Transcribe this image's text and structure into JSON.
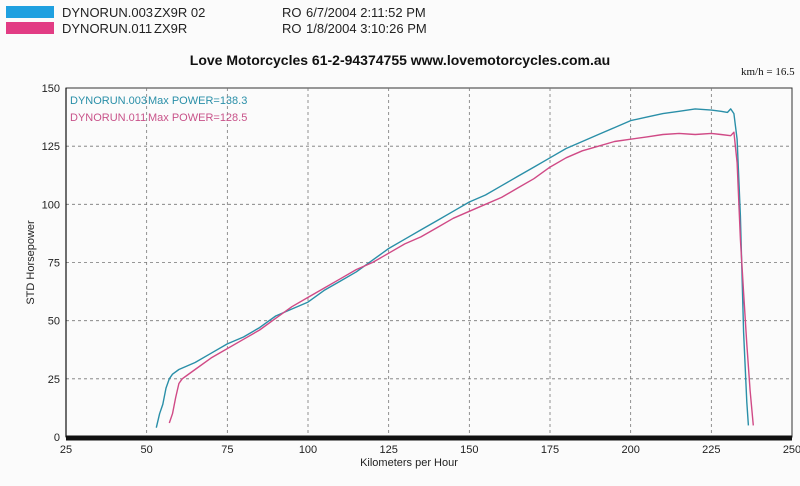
{
  "header": {
    "rows": [
      {
        "run": "DYNORUN.003",
        "model": "ZX9R 02",
        "code": "RO",
        "datetime": "6/7/2004 2:11:52 PM",
        "color": "#1fa0e0"
      },
      {
        "run": "DYNORUN.011",
        "model": "ZX9R",
        "code": "RO",
        "datetime": "1/8/2004 3:10:26 PM",
        "color": "#e23c84"
      }
    ]
  },
  "title": "Love Motorcycles 61-2-94374755 www.lovemotorcycles.com.au",
  "unit_note": "km/h = 16.5",
  "chart_data": {
    "type": "line",
    "xlabel": "Kilometers per Hour",
    "ylabel": "STD Horsepower",
    "xlim": [
      25,
      250
    ],
    "ylim": [
      0,
      150
    ],
    "xticks": [
      25,
      50,
      75,
      100,
      125,
      150,
      175,
      200,
      225,
      250
    ],
    "yticks": [
      0,
      25,
      50,
      75,
      100,
      125,
      150
    ],
    "grid": true,
    "legend": "top-left",
    "annotations": [
      {
        "run": "DYNORUN.003",
        "text": "Max POWER=138.3",
        "color": "#2a8fa8"
      },
      {
        "run": "DYNORUN.011",
        "text": "Max POWER=128.5",
        "color": "#c8538a"
      }
    ],
    "series": [
      {
        "name": "DYNORUN.003",
        "color": "#2a8fa8",
        "points": [
          [
            53,
            4
          ],
          [
            54,
            10
          ],
          [
            55,
            14
          ],
          [
            56,
            21
          ],
          [
            57,
            25
          ],
          [
            58,
            27
          ],
          [
            60,
            29
          ],
          [
            65,
            32
          ],
          [
            70,
            36
          ],
          [
            75,
            40
          ],
          [
            80,
            43
          ],
          [
            85,
            47
          ],
          [
            90,
            52
          ],
          [
            95,
            55
          ],
          [
            100,
            58
          ],
          [
            105,
            63
          ],
          [
            110,
            67
          ],
          [
            115,
            71
          ],
          [
            120,
            76
          ],
          [
            125,
            81
          ],
          [
            130,
            85
          ],
          [
            135,
            89
          ],
          [
            140,
            93
          ],
          [
            145,
            97
          ],
          [
            150,
            101
          ],
          [
            155,
            104
          ],
          [
            160,
            108
          ],
          [
            165,
            112
          ],
          [
            170,
            116
          ],
          [
            175,
            120
          ],
          [
            180,
            124
          ],
          [
            185,
            127
          ],
          [
            190,
            130
          ],
          [
            195,
            133
          ],
          [
            200,
            136
          ],
          [
            205,
            137.5
          ],
          [
            210,
            139
          ],
          [
            215,
            140
          ],
          [
            220,
            141
          ],
          [
            225,
            140.5
          ],
          [
            228,
            140
          ],
          [
            230,
            139.5
          ],
          [
            231,
            141
          ],
          [
            232,
            139
          ],
          [
            233,
            128
          ],
          [
            234,
            95
          ],
          [
            235,
            45
          ],
          [
            236,
            15
          ],
          [
            236.5,
            5
          ]
        ]
      },
      {
        "name": "DYNORUN.011",
        "color": "#d04a86",
        "points": [
          [
            57,
            6
          ],
          [
            58,
            10
          ],
          [
            59,
            17
          ],
          [
            60,
            23
          ],
          [
            61,
            25
          ],
          [
            62,
            26
          ],
          [
            65,
            29
          ],
          [
            70,
            34
          ],
          [
            75,
            38
          ],
          [
            80,
            42
          ],
          [
            85,
            46
          ],
          [
            90,
            51
          ],
          [
            95,
            56
          ],
          [
            100,
            60
          ],
          [
            105,
            64
          ],
          [
            110,
            68
          ],
          [
            115,
            72
          ],
          [
            120,
            75
          ],
          [
            125,
            79
          ],
          [
            130,
            83
          ],
          [
            135,
            86
          ],
          [
            140,
            90
          ],
          [
            145,
            94
          ],
          [
            150,
            97
          ],
          [
            155,
            100
          ],
          [
            160,
            103
          ],
          [
            165,
            107
          ],
          [
            170,
            111
          ],
          [
            175,
            116
          ],
          [
            180,
            120
          ],
          [
            185,
            123
          ],
          [
            190,
            125
          ],
          [
            195,
            127
          ],
          [
            200,
            128
          ],
          [
            205,
            129
          ],
          [
            210,
            130
          ],
          [
            215,
            130.5
          ],
          [
            220,
            130
          ],
          [
            225,
            130.5
          ],
          [
            228,
            130
          ],
          [
            231,
            129.5
          ],
          [
            232,
            131
          ],
          [
            233,
            118
          ],
          [
            234,
            85
          ],
          [
            235,
            62
          ],
          [
            236,
            40
          ],
          [
            237,
            20
          ],
          [
            238,
            5
          ]
        ]
      }
    ]
  }
}
